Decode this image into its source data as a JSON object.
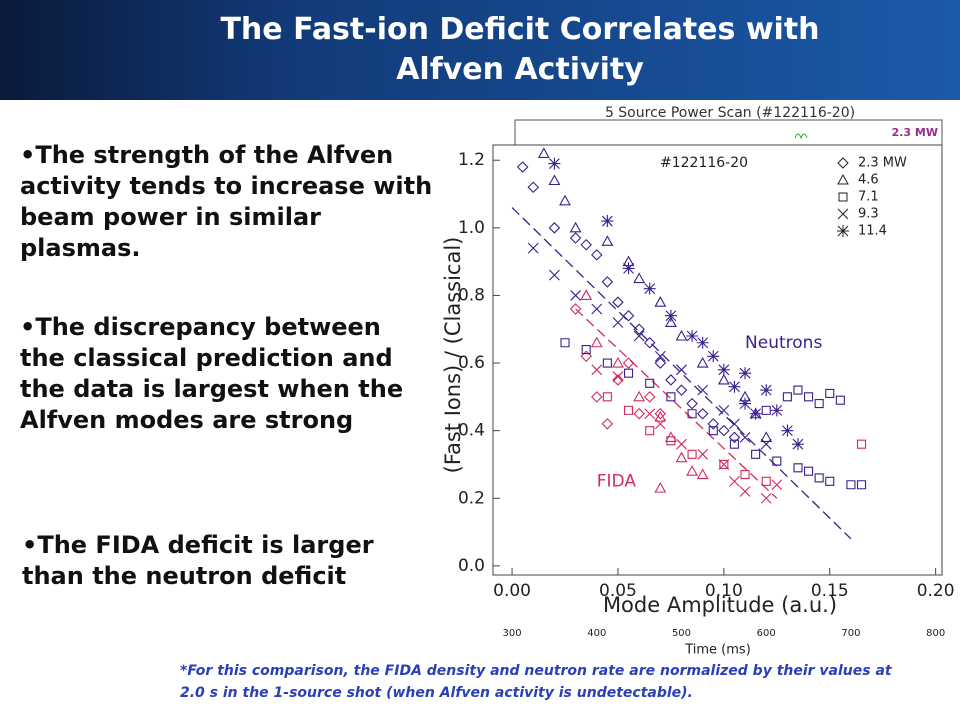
{
  "header": {
    "title_line1": "The Fast-ion Deficit Correlates with",
    "title_line2": "Alfven Activity"
  },
  "bullets": [
    "The strength of the Alfven activity tends to increase with beam power in similar plasmas.",
    "The discrepancy between the classical prediction and the data is largest when the Alfven modes are strong",
    "The FIDA deficit is larger than the neutron deficit"
  ],
  "footnote": "*For this comparison, the FIDA density and neutron rate are normalized by their values at 2.0 s in the 1-source shot (when Alfven activity is undetectable).",
  "chart_data": {
    "type": "scatter",
    "title": "5 Source Power Scan (#122116-20)",
    "inset_label": "2.3 MW",
    "annotation": "#122116-20",
    "xlabel": "Mode Amplitude (a.u.)",
    "ylabel": "(Fast Ions) / (Classical)",
    "x2label": "Time (ms)",
    "xlim": [
      -0.009,
      0.203
    ],
    "ylim": [
      -0.027,
      1.245
    ],
    "xticks": [
      {
        "value": 0,
        "label": "0.00"
      },
      {
        "value": 0.05,
        "label": "0.05"
      },
      {
        "value": 0.1,
        "label": "0.10"
      },
      {
        "value": 0.15,
        "label": "0.15"
      },
      {
        "value": 0.2,
        "label": "0.20"
      }
    ],
    "yticks": [
      {
        "value": 0,
        "label": "0.0"
      },
      {
        "value": 0.2,
        "label": "0.2"
      },
      {
        "value": 0.4,
        "label": "0.4"
      },
      {
        "value": 0.6,
        "label": "0.6"
      },
      {
        "value": 0.8,
        "label": "0.8"
      },
      {
        "value": 1.0,
        "label": "1.0"
      },
      {
        "value": 1.2,
        "label": "1.2"
      }
    ],
    "x2lim": [
      300,
      800
    ],
    "x2ticks": [
      300,
      400,
      500,
      600,
      700,
      800
    ],
    "color": "#3b1f8c",
    "fida_color": "#d42a5a",
    "fits": [
      {
        "label": "Neutrons",
        "color": "#3b1f8c",
        "x": [
          0.0,
          0.16
        ],
        "y": [
          1.06,
          0.08
        ],
        "label_x": 0.11,
        "label_y": 0.66
      },
      {
        "label": "FIDA",
        "color": "#d42a5a",
        "x": [
          0.03,
          0.125
        ],
        "y": [
          0.76,
          0.2
        ],
        "label_x": 0.04,
        "label_y": 0.25
      }
    ],
    "series": [
      {
        "name": "2.3 MW",
        "marker": "diamond",
        "x": [
          0.005,
          0.01,
          0.02,
          0.03,
          0.035,
          0.04,
          0.045,
          0.05,
          0.055,
          0.06,
          0.065,
          0.07,
          0.075,
          0.08,
          0.085,
          0.09,
          0.095,
          0.1,
          0.105
        ],
        "y": [
          1.18,
          1.12,
          1.0,
          0.97,
          0.95,
          0.92,
          0.84,
          0.78,
          0.74,
          0.7,
          0.66,
          0.6,
          0.55,
          0.52,
          0.48,
          0.45,
          0.42,
          0.4,
          0.38
        ],
        "fida_x": [
          0.03,
          0.035,
          0.04,
          0.045,
          0.05,
          0.055,
          0.06,
          0.065,
          0.07
        ],
        "fida_y": [
          0.76,
          0.62,
          0.5,
          0.42,
          0.55,
          0.6,
          0.45,
          0.5,
          0.45
        ]
      },
      {
        "name": "4.6",
        "marker": "triangle",
        "x": [
          0.015,
          0.02,
          0.025,
          0.03,
          0.045,
          0.055,
          0.06,
          0.07,
          0.075,
          0.08,
          0.09,
          0.1,
          0.11,
          0.115,
          0.12
        ],
        "y": [
          1.22,
          1.14,
          1.08,
          1.0,
          0.96,
          0.9,
          0.85,
          0.78,
          0.72,
          0.68,
          0.6,
          0.55,
          0.5,
          0.45,
          0.38
        ],
        "fida_x": [
          0.035,
          0.04,
          0.05,
          0.06,
          0.07,
          0.075,
          0.08,
          0.085,
          0.07,
          0.09
        ],
        "fida_y": [
          0.8,
          0.66,
          0.6,
          0.5,
          0.44,
          0.38,
          0.32,
          0.28,
          0.23,
          0.27
        ]
      },
      {
        "name": "7.1",
        "marker": "square",
        "x": [
          0.025,
          0.035,
          0.045,
          0.055,
          0.065,
          0.075,
          0.085,
          0.095,
          0.105,
          0.115,
          0.125,
          0.135,
          0.14,
          0.145,
          0.15,
          0.16,
          0.165,
          0.13,
          0.135,
          0.14,
          0.145,
          0.15,
          0.155,
          0.12
        ],
        "y": [
          0.66,
          0.64,
          0.6,
          0.57,
          0.54,
          0.5,
          0.45,
          0.4,
          0.36,
          0.33,
          0.31,
          0.29,
          0.28,
          0.26,
          0.25,
          0.24,
          0.24,
          0.5,
          0.52,
          0.5,
          0.48,
          0.51,
          0.49,
          0.46
        ],
        "fida_x": [
          0.045,
          0.055,
          0.065,
          0.075,
          0.085,
          0.1,
          0.11,
          0.12,
          0.165
        ],
        "fida_y": [
          0.5,
          0.46,
          0.4,
          0.37,
          0.33,
          0.3,
          0.27,
          0.25,
          0.36
        ]
      },
      {
        "name": "9.3",
        "marker": "cross",
        "x": [
          0.01,
          0.02,
          0.03,
          0.04,
          0.05,
          0.06,
          0.07,
          0.08,
          0.09,
          0.1,
          0.105,
          0.11,
          0.12
        ],
        "y": [
          0.94,
          0.86,
          0.8,
          0.76,
          0.72,
          0.68,
          0.62,
          0.58,
          0.52,
          0.46,
          0.42,
          0.38,
          0.36
        ],
        "fida_x": [
          0.04,
          0.05,
          0.065,
          0.07,
          0.08,
          0.09,
          0.1,
          0.105,
          0.11,
          0.12,
          0.125
        ],
        "fida_y": [
          0.58,
          0.56,
          0.45,
          0.42,
          0.36,
          0.33,
          0.3,
          0.25,
          0.22,
          0.2,
          0.24
        ]
      },
      {
        "name": "11.4",
        "marker": "star",
        "x": [
          0.02,
          0.045,
          0.055,
          0.065,
          0.075,
          0.085,
          0.09,
          0.095,
          0.1,
          0.105,
          0.11,
          0.115,
          0.12,
          0.125,
          0.13,
          0.135,
          0.11
        ],
        "y": [
          1.19,
          1.02,
          0.88,
          0.82,
          0.74,
          0.68,
          0.66,
          0.62,
          0.58,
          0.53,
          0.48,
          0.45,
          0.52,
          0.46,
          0.4,
          0.36,
          0.57
        ]
      }
    ]
  }
}
